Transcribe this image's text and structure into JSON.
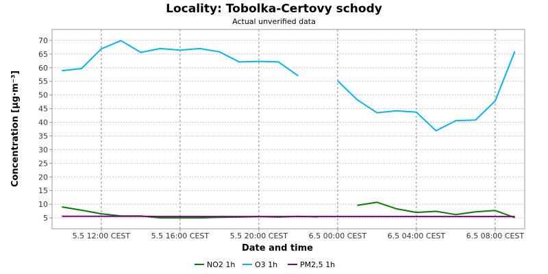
{
  "chart_data": {
    "type": "line",
    "title": "Locality: Tobolka-Certovy schody",
    "subtitle": "Actual unverified data",
    "xlabel": "Date and time",
    "ylabel": "Concentration [μg·m⁻³]",
    "ylim": [
      1,
      74
    ],
    "yticks": [
      5,
      10,
      15,
      20,
      25,
      30,
      35,
      40,
      45,
      50,
      55,
      60,
      65,
      70
    ],
    "xlim": [
      "2024-05-05T09:30",
      "2024-05-06T09:30"
    ],
    "xticks": [
      {
        "x": "2024-05-05T12:00",
        "label": "5.5 12:00 CEST"
      },
      {
        "x": "2024-05-05T16:00",
        "label": "5.5 16:00 CEST"
      },
      {
        "x": "2024-05-05T20:00",
        "label": "5.5 20:00 CEST"
      },
      {
        "x": "2024-05-06T00:00",
        "label": "6.5 00:00 CEST"
      },
      {
        "x": "2024-05-06T04:00",
        "label": "6.5 04:00 CEST"
      },
      {
        "x": "2024-05-06T08:00",
        "label": "6.5 08:00 CEST"
      }
    ],
    "x": [
      "2024-05-05T10:00",
      "2024-05-05T11:00",
      "2024-05-05T12:00",
      "2024-05-05T13:00",
      "2024-05-05T14:00",
      "2024-05-05T15:00",
      "2024-05-05T16:00",
      "2024-05-05T17:00",
      "2024-05-05T18:00",
      "2024-05-05T19:00",
      "2024-05-05T20:00",
      "2024-05-05T21:00",
      "2024-05-05T22:00",
      "2024-05-05T23:00",
      "2024-05-06T00:00",
      "2024-05-06T01:00",
      "2024-05-06T02:00",
      "2024-05-06T03:00",
      "2024-05-06T04:00",
      "2024-05-06T05:00",
      "2024-05-06T06:00",
      "2024-05-06T07:00",
      "2024-05-06T08:00",
      "2024-05-06T09:00"
    ],
    "grid": true,
    "legend_position": "bottom",
    "series": [
      {
        "name": "NO2 1h",
        "color": "#008000",
        "values": [
          9,
          7.8,
          6.5,
          5.7,
          5.7,
          5.0,
          5.0,
          5.0,
          5.2,
          5.3,
          5.5,
          5.3,
          5.6,
          5.4,
          null,
          9.6,
          10.7,
          8.3,
          7.0,
          7.4,
          6.2,
          7.2,
          7.7,
          5.1
        ]
      },
      {
        "name": "O3 1h",
        "color": "#00b4ff",
        "values": [
          58.9,
          59.7,
          66.9,
          69.9,
          65.6,
          67.0,
          66.4,
          67.0,
          65.8,
          62.1,
          62.3,
          62.1,
          57.0,
          null,
          55.2,
          48.2,
          43.5,
          44.2,
          43.7,
          36.9,
          40.6,
          40.8,
          47.8,
          66.0
        ]
      },
      {
        "name": "PM2,5 1h",
        "color": "#800080",
        "values": [
          5.6,
          5.6,
          5.6,
          5.6,
          5.6,
          5.5,
          5.5,
          5.5,
          5.5,
          5.5,
          5.5,
          5.5,
          5.5,
          5.5,
          5.5,
          5.5,
          5.5,
          5.5,
          5.5,
          5.5,
          5.5,
          5.5,
          5.5,
          5.5
        ]
      }
    ]
  }
}
